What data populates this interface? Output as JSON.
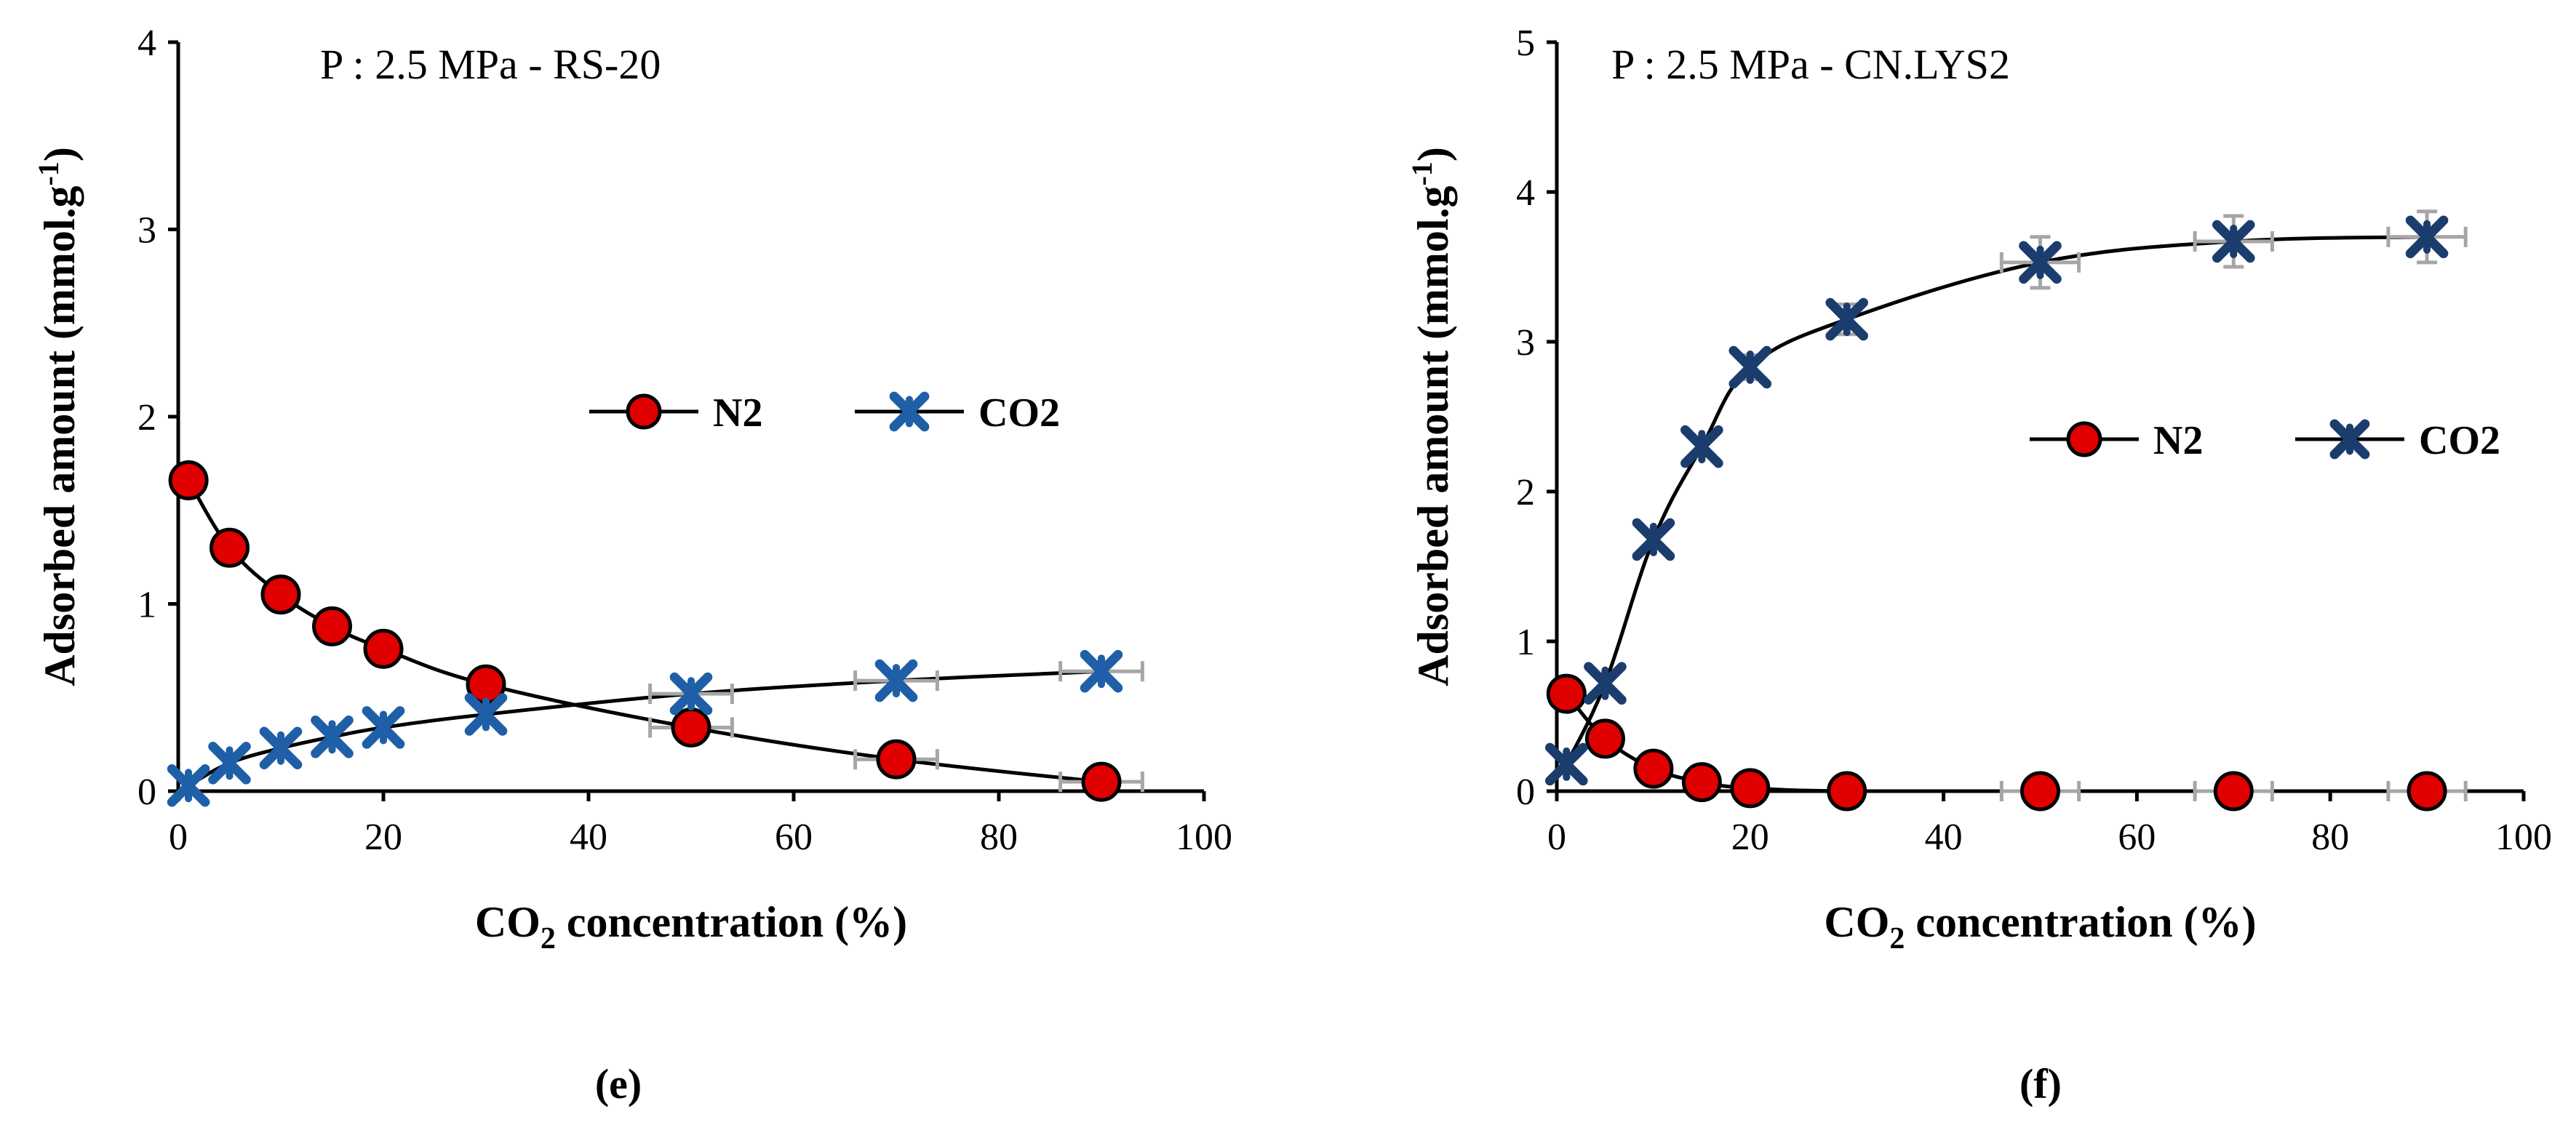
{
  "figure": {
    "panels": [
      "(e)",
      "(f)"
    ]
  },
  "chart_data": [
    {
      "type": "line",
      "panel_label": "(e)",
      "annotation": "P : 2.5 MPa - RS-20",
      "xlabel": "CO",
      "xlabel_sub": "2",
      "xlabel_tail": " concentration (%)",
      "ylabel": "Adsorbed amount (mmol.g",
      "ylabel_sup": "-1",
      "ylabel_tail": ")",
      "xlim": [
        0,
        100
      ],
      "ylim": [
        0,
        4
      ],
      "xticks": [
        0,
        20,
        40,
        60,
        80,
        100
      ],
      "yticks": [
        0,
        1,
        2,
        3,
        4
      ],
      "legend_position": "center-right",
      "series": [
        {
          "name": "N2",
          "marker": "circle",
          "color": "#e00000",
          "x": [
            1,
            5,
            10,
            15,
            20,
            30,
            50,
            70,
            90
          ],
          "y": [
            1.66,
            1.3,
            1.05,
            0.88,
            0.76,
            0.57,
            0.34,
            0.17,
            0.05
          ],
          "xerr": [
            0,
            0,
            0,
            0,
            0,
            0,
            4,
            4,
            4
          ]
        },
        {
          "name": "CO2",
          "marker": "star",
          "color": "#1f5fa8",
          "x": [
            1,
            5,
            10,
            15,
            20,
            30,
            50,
            70,
            90
          ],
          "y": [
            0.03,
            0.15,
            0.23,
            0.29,
            0.34,
            0.41,
            0.52,
            0.59,
            0.64
          ],
          "xerr": [
            0,
            0,
            0,
            0,
            0,
            0,
            4,
            4,
            4
          ]
        }
      ]
    },
    {
      "type": "line",
      "panel_label": "(f)",
      "annotation": "P : 2.5 MPa - CN.LYS2",
      "xlabel": "CO",
      "xlabel_sub": "2",
      "xlabel_tail": " concentration (%)",
      "ylabel": "Adsorbed amount (mmol.g",
      "ylabel_sup": "-1",
      "ylabel_tail": ")",
      "xlim": [
        0,
        100
      ],
      "ylim": [
        0,
        5
      ],
      "xticks": [
        0,
        20,
        40,
        60,
        80,
        100
      ],
      "yticks": [
        0,
        1,
        2,
        3,
        4,
        5
      ],
      "legend_position": "center-right",
      "series": [
        {
          "name": "N2",
          "marker": "circle",
          "color": "#e00000",
          "x": [
            1,
            5,
            10,
            15,
            20,
            30,
            50,
            70,
            90
          ],
          "y": [
            0.65,
            0.35,
            0.15,
            0.06,
            0.02,
            0.0,
            0.0,
            0.0,
            0.0
          ],
          "xerr": [
            0,
            0,
            0,
            0,
            0,
            0,
            4,
            4,
            4
          ],
          "yerr": [
            0,
            0,
            0,
            0,
            0,
            0,
            0,
            0,
            0
          ]
        },
        {
          "name": "CO2",
          "marker": "star",
          "color": "#1a3d6e",
          "x": [
            1,
            5,
            10,
            15,
            20,
            30,
            50,
            70,
            90
          ],
          "y": [
            0.18,
            0.72,
            1.68,
            2.3,
            2.83,
            3.15,
            3.53,
            3.67,
            3.7
          ],
          "xerr": [
            0,
            0,
            0,
            0,
            0,
            0,
            4,
            4,
            4
          ],
          "yerr": [
            0,
            0,
            0.05,
            0.06,
            0.08,
            0.1,
            0.17,
            0.17,
            0.17
          ]
        }
      ]
    }
  ]
}
